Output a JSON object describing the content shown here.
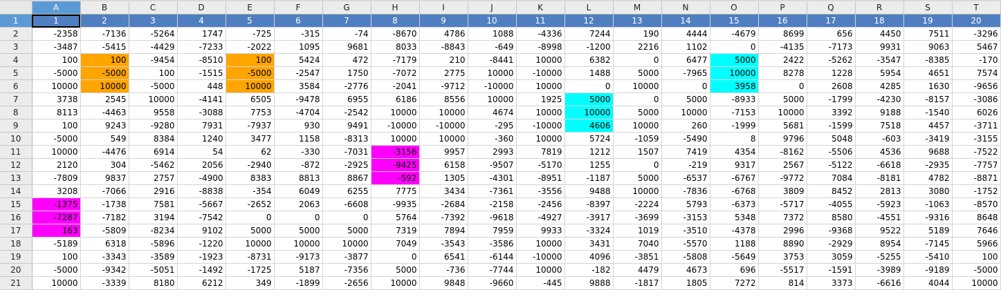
{
  "colors": {
    "orange": "#ffa500",
    "cyan": "#00ffff",
    "magenta": "#ff00ff",
    "selection": "#4f7fc0",
    "header_selected": "#5b9bd5"
  },
  "sheet": {
    "columns": [
      "A",
      "B",
      "C",
      "D",
      "E",
      "F",
      "G",
      "H",
      "I",
      "J",
      "K",
      "L",
      "M",
      "N",
      "O",
      "P",
      "Q",
      "R",
      "S",
      "T"
    ],
    "row_numbers": [
      "1",
      "2",
      "3",
      "4",
      "5",
      "6",
      "7",
      "8",
      "9",
      "10",
      "11",
      "12",
      "13",
      "14",
      "15",
      "16",
      "17",
      "18",
      "19",
      "20",
      "21"
    ],
    "selected_column": "A",
    "selected_row": "1",
    "rows": [
      [
        "1",
        "2",
        "3",
        "4",
        "5",
        "6",
        "7",
        "8",
        "9",
        "10",
        "11",
        "12",
        "13",
        "14",
        "15",
        "16",
        "17",
        "18",
        "19",
        "20"
      ],
      [
        "-2358",
        "-7136",
        "-5264",
        "1747",
        "-725",
        "-315",
        "-74",
        "-8670",
        "4786",
        "1088",
        "-4336",
        "7244",
        "190",
        "4444",
        "-4679",
        "8699",
        "656",
        "4450",
        "7511",
        "-3296"
      ],
      [
        "-3487",
        "-5415",
        "-4429",
        "-7233",
        "-2022",
        "1095",
        "9681",
        "8033",
        "-8843",
        "-649",
        "-8998",
        "-1200",
        "2216",
        "1102",
        "0",
        "-4135",
        "-7173",
        "9931",
        "9063",
        "5467"
      ],
      [
        "100",
        "100",
        "-9454",
        "-8510",
        "100",
        "5424",
        "472",
        "-7179",
        "210",
        "-8441",
        "10000",
        "6382",
        "0",
        "6477",
        "5000",
        "2422",
        "-5262",
        "-3547",
        "-8385",
        "-170"
      ],
      [
        "-5000",
        "-5000",
        "100",
        "-1515",
        "-5000",
        "-2547",
        "1750",
        "-7072",
        "2775",
        "10000",
        "-10000",
        "1488",
        "5000",
        "-7965",
        "10000",
        "8278",
        "1228",
        "5954",
        "4651",
        "7574"
      ],
      [
        "10000",
        "10000",
        "-5000",
        "448",
        "10000",
        "3584",
        "-2776",
        "-2041",
        "-9712",
        "-10000",
        "10000",
        "0",
        "10000",
        "0",
        "3958",
        "0",
        "2608",
        "4285",
        "1630",
        "-9656"
      ],
      [
        "3738",
        "2545",
        "10000",
        "-4141",
        "6505",
        "-9478",
        "6955",
        "6186",
        "8556",
        "10000",
        "1925",
        "5000",
        "0",
        "5000",
        "-8933",
        "5000",
        "-1799",
        "-4230",
        "-8157",
        "-3086"
      ],
      [
        "8113",
        "-4463",
        "9558",
        "-3088",
        "7753",
        "-4704",
        "-2542",
        "10000",
        "10000",
        "4674",
        "10000",
        "10000",
        "5000",
        "10000",
        "-7153",
        "10000",
        "3392",
        "9188",
        "-1540",
        "6026"
      ],
      [
        "100",
        "9243",
        "-9280",
        "7931",
        "-7937",
        "930",
        "9491",
        "-10000",
        "-10000",
        "-295",
        "-10000",
        "4606",
        "10000",
        "260",
        "-1999",
        "5681",
        "-1599",
        "7518",
        "4457",
        "-3711"
      ],
      [
        "-5000",
        "549",
        "8384",
        "1240",
        "3477",
        "1158",
        "-8313",
        "10000",
        "10000",
        "-360",
        "10000",
        "5724",
        "-1059",
        "-5490",
        "8",
        "9796",
        "5048",
        "-603",
        "-3419",
        "-3155"
      ],
      [
        "10000",
        "-4476",
        "6914",
        "54",
        "62",
        "-330",
        "-7031",
        "-3156",
        "9957",
        "2993",
        "7819",
        "1212",
        "1507",
        "7419",
        "4354",
        "-8162",
        "-5506",
        "4536",
        "9688",
        "-7522"
      ],
      [
        "2120",
        "304",
        "-5462",
        "2056",
        "-2940",
        "-872",
        "-2925",
        "-9425",
        "6158",
        "-9507",
        "-5170",
        "1255",
        "0",
        "-219",
        "9317",
        "2567",
        "-5122",
        "-6618",
        "-2935",
        "-7757"
      ],
      [
        "-7809",
        "9837",
        "2757",
        "-4900",
        "8383",
        "8813",
        "8867",
        "-592",
        "1305",
        "-4301",
        "-8951",
        "-1187",
        "5000",
        "-6537",
        "-6767",
        "-9772",
        "7084",
        "-8181",
        "4782",
        "-8871"
      ],
      [
        "3208",
        "-7066",
        "2916",
        "-8838",
        "-354",
        "6049",
        "6255",
        "7775",
        "3434",
        "-7361",
        "-3556",
        "9488",
        "10000",
        "-7836",
        "-6768",
        "3809",
        "8452",
        "2813",
        "3080",
        "-1752"
      ],
      [
        "-1375",
        "-1738",
        "7581",
        "-5667",
        "-2652",
        "2063",
        "-6608",
        "-9935",
        "-2684",
        "-2158",
        "-2456",
        "-8397",
        "-2224",
        "5793",
        "-6373",
        "-5717",
        "-4055",
        "-5923",
        "-1063",
        "-8570"
      ],
      [
        "-7287",
        "-7182",
        "3194",
        "-7542",
        "0",
        "0",
        "0",
        "5764",
        "-7392",
        "-9618",
        "-4927",
        "-3917",
        "-3699",
        "-3153",
        "5348",
        "7372",
        "8580",
        "-4551",
        "-9316",
        "8648"
      ],
      [
        "163",
        "-5809",
        "-8234",
        "9102",
        "5000",
        "5000",
        "5000",
        "7319",
        "7894",
        "7959",
        "9933",
        "-3324",
        "1019",
        "-3510",
        "-4378",
        "2996",
        "-9368",
        "9522",
        "5189",
        "7646"
      ],
      [
        "-5189",
        "6318",
        "-5896",
        "-1220",
        "10000",
        "10000",
        "10000",
        "7049",
        "-3543",
        "-3586",
        "10000",
        "3431",
        "7040",
        "-5570",
        "1188",
        "8890",
        "-2929",
        "8954",
        "-7145",
        "5966"
      ],
      [
        "100",
        "-3343",
        "-3589",
        "-1923",
        "-8731",
        "-9173",
        "-3877",
        "0",
        "6541",
        "-6144",
        "-10000",
        "4096",
        "-3851",
        "-5808",
        "-5649",
        "3753",
        "3059",
        "-5255",
        "-5410",
        "100"
      ],
      [
        "-5000",
        "-9342",
        "-5051",
        "-1492",
        "-1725",
        "5187",
        "-7356",
        "5000",
        "-736",
        "-7744",
        "10000",
        "-182",
        "4479",
        "4673",
        "696",
        "-5517",
        "-1591",
        "-3989",
        "-9189",
        "-5000"
      ],
      [
        "10000",
        "-3339",
        "8180",
        "6212",
        "349",
        "-1899",
        "-2656",
        "10000",
        "9848",
        "-9660",
        "-445",
        "9888",
        "-1817",
        "1805",
        "7272",
        "814",
        "3373",
        "-6616",
        "4044",
        "10000"
      ]
    ],
    "highlights": [
      {
        "color": "orange",
        "row": 4,
        "col": 2
      },
      {
        "color": "orange",
        "row": 5,
        "col": 2
      },
      {
        "color": "orange",
        "row": 6,
        "col": 2
      },
      {
        "color": "orange",
        "row": 4,
        "col": 5
      },
      {
        "color": "orange",
        "row": 5,
        "col": 5
      },
      {
        "color": "orange",
        "row": 6,
        "col": 5
      },
      {
        "color": "cyan",
        "row": 4,
        "col": 15
      },
      {
        "color": "cyan",
        "row": 5,
        "col": 15
      },
      {
        "color": "cyan",
        "row": 6,
        "col": 15
      },
      {
        "color": "cyan",
        "row": 7,
        "col": 12
      },
      {
        "color": "cyan",
        "row": 8,
        "col": 12
      },
      {
        "color": "cyan",
        "row": 9,
        "col": 12
      },
      {
        "color": "magenta",
        "row": 11,
        "col": 8
      },
      {
        "color": "magenta",
        "row": 12,
        "col": 8
      },
      {
        "color": "magenta",
        "row": 13,
        "col": 8
      },
      {
        "color": "magenta",
        "row": 15,
        "col": 1
      },
      {
        "color": "magenta",
        "row": 16,
        "col": 1
      },
      {
        "color": "magenta",
        "row": 17,
        "col": 1
      }
    ]
  }
}
